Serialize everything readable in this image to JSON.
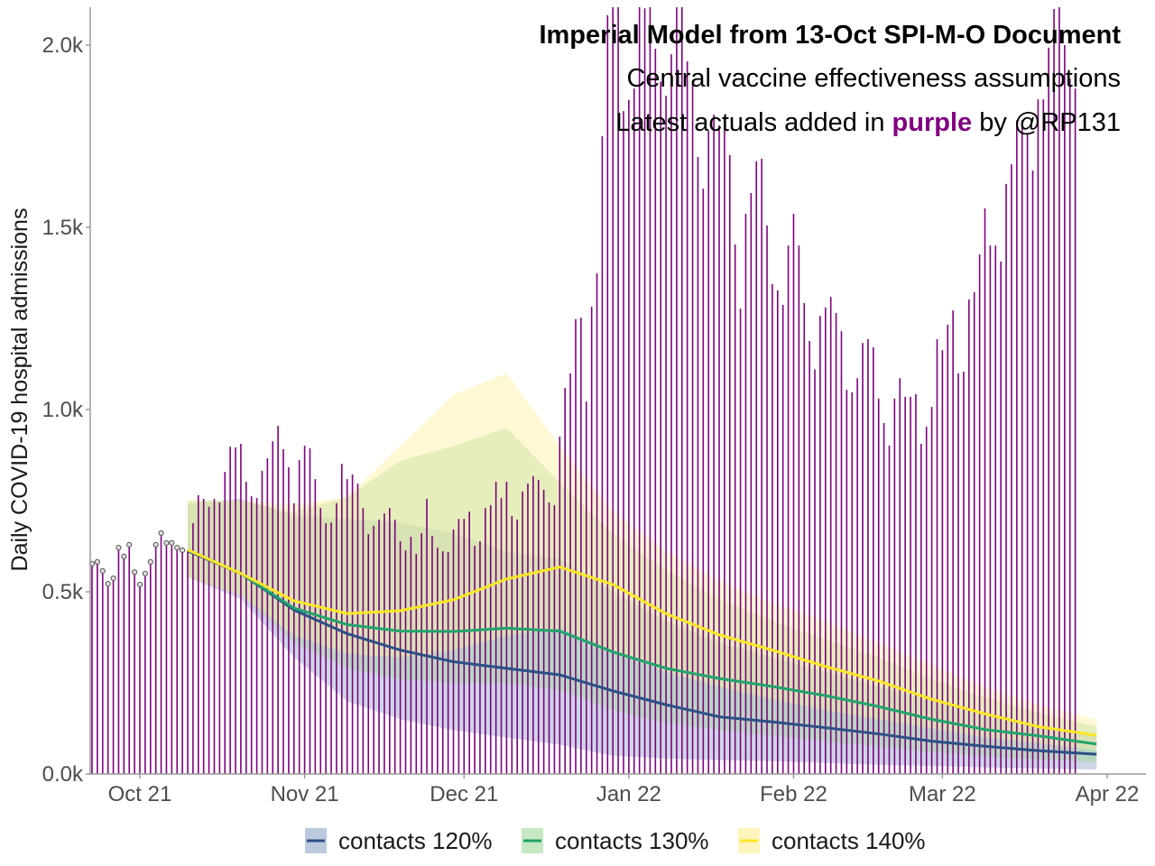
{
  "chart_data": {
    "type": "bar",
    "title": "Imperial Model from 13-Oct SPI-M-O Document",
    "subtitle": "Central vaccine effectiveness assumptions",
    "caption_parts": [
      "Latest actuals added in ",
      "purple",
      " by @RP131"
    ],
    "xlabel": "",
    "ylabel": "Daily COVID-19 hospital admissions",
    "xlim": [
      "2021-09-21",
      "2022-04-09"
    ],
    "ylim": [
      0,
      2104
    ],
    "grid": false,
    "x_ticks": [
      {
        "date": "2021-10-01",
        "label": "Oct 21"
      },
      {
        "date": "2021-11-01",
        "label": "Nov 21"
      },
      {
        "date": "2021-12-01",
        "label": "Dec 21"
      },
      {
        "date": "2022-01-01",
        "label": "Jan 22"
      },
      {
        "date": "2022-02-01",
        "label": "Feb 22"
      },
      {
        "date": "2022-03-01",
        "label": "Mar 22"
      },
      {
        "date": "2022-04-01",
        "label": "Apr 22"
      }
    ],
    "y_ticks": [
      {
        "value": 0,
        "label": "0.0k"
      },
      {
        "value": 500,
        "label": "0.5k"
      },
      {
        "value": 1000,
        "label": "1.0k"
      },
      {
        "value": 1500,
        "label": "1.5k"
      },
      {
        "value": 2000,
        "label": "2.0k"
      }
    ],
    "actuals": {
      "name": "Actual daily admissions",
      "color": "#800080",
      "start_date": "2021-09-22",
      "marked_until": "2021-10-09",
      "values": [
        577,
        582,
        557,
        522,
        537,
        621,
        597,
        629,
        554,
        520,
        550,
        582,
        629,
        661,
        634,
        634,
        621,
        614,
        614,
        688,
        765,
        755,
        733,
        755,
        745,
        829,
        898,
        896,
        906,
        802,
        762,
        757,
        832,
        866,
        913,
        955,
        891,
        842,
        743,
        861,
        901,
        894,
        809,
        730,
        688,
        690,
        743,
        851,
        809,
        822,
        797,
        730,
        658,
        681,
        698,
        715,
        730,
        698,
        639,
        614,
        651,
        604,
        661,
        755,
        653,
        621,
        611,
        609,
        671,
        700,
        700,
        720,
        626,
        639,
        730,
        738,
        802,
        757,
        802,
        708,
        698,
        775,
        797,
        817,
        807,
        780,
        745,
        738,
        926,
        1059,
        1099,
        1248,
        1252,
        1022,
        1282,
        1374,
        1750,
        2082,
        2200,
        2114,
        1819,
        1850,
        1881,
        2200,
        2101,
        2200,
        1990,
        1900,
        1861,
        1975,
        2200,
        2200,
        1955,
        1893,
        1693,
        1606,
        1765,
        1809,
        1780,
        1777,
        1698,
        1453,
        1277,
        1537,
        1594,
        1681,
        1688,
        1505,
        1344,
        1327,
        1287,
        1450,
        1537,
        1450,
        1292,
        1188,
        1110,
        1257,
        1280,
        1309,
        1265,
        1215,
        1054,
        1047,
        1086,
        1183,
        1193,
        1171,
        1030,
        963,
        901,
        1030,
        1086,
        1035,
        1035,
        1042,
        906,
        953,
        1007,
        1193,
        1163,
        1233,
        1272,
        1099,
        1104,
        1302,
        1322,
        1426,
        1552,
        1450,
        1450,
        1406,
        1619,
        1673,
        1794,
        1794,
        1757,
        1656,
        1851,
        1851,
        1993,
        2099,
        2200,
        2000,
        1908,
        1881
      ]
    },
    "model_dates": [
      "2021-10-10",
      "2021-10-20",
      "2021-10-30",
      "2021-11-09",
      "2021-11-19",
      "2021-11-29",
      "2021-12-09",
      "2021-12-19",
      "2021-12-29",
      "2022-01-08",
      "2022-01-18",
      "2022-01-28",
      "2022-02-07",
      "2022-02-17",
      "2022-02-27",
      "2022-03-09",
      "2022-03-19",
      "2022-03-30"
    ],
    "series": [
      {
        "name": "contacts 120%",
        "line_color": "#2d4f86",
        "ribbon_color": "#8fa6c8",
        "values": [
          612,
          550,
          450,
          385,
          340,
          308,
          290,
          272,
          228,
          190,
          157,
          143,
          127,
          110,
          90,
          76,
          64,
          54
        ],
        "upper": [
          740,
          755,
          710,
          700,
          690,
          660,
          610,
          590,
          500,
          420,
          360,
          320,
          280,
          240,
          200,
          160,
          130,
          110
        ],
        "lower": [
          540,
          480,
          320,
          200,
          150,
          120,
          100,
          80,
          50,
          42,
          38,
          35,
          30,
          25,
          22,
          18,
          15,
          12
        ]
      },
      {
        "name": "contacts 130%",
        "line_color": "#21a36b",
        "ribbon_color": "#9fd89a",
        "values": [
          615,
          550,
          455,
          410,
          392,
          391,
          400,
          392,
          335,
          290,
          262,
          240,
          215,
          185,
          150,
          122,
          105,
          82
        ],
        "upper": [
          750,
          750,
          720,
          760,
          860,
          900,
          950,
          800,
          660,
          560,
          480,
          420,
          370,
          320,
          260,
          210,
          170,
          130
        ],
        "lower": [
          540,
          490,
          360,
          290,
          260,
          250,
          250,
          230,
          175,
          140,
          120,
          105,
          90,
          75,
          60,
          48,
          40,
          32
        ]
      },
      {
        "name": "contacts 140%",
        "line_color": "#fde725",
        "ribbon_color": "#fcf1a0",
        "values": [
          615,
          550,
          475,
          440,
          448,
          478,
          535,
          568,
          520,
          440,
          382,
          340,
          295,
          255,
          205,
          165,
          130,
          106
        ],
        "upper": [
          750,
          750,
          740,
          760,
          900,
          1040,
          1100,
          900,
          720,
          610,
          530,
          470,
          420,
          360,
          300,
          240,
          190,
          150
        ],
        "lower": [
          540,
          490,
          380,
          330,
          320,
          340,
          380,
          400,
          340,
          280,
          240,
          205,
          175,
          150,
          125,
          100,
          85,
          65
        ]
      }
    ],
    "legend": {
      "position": "bottom"
    }
  }
}
